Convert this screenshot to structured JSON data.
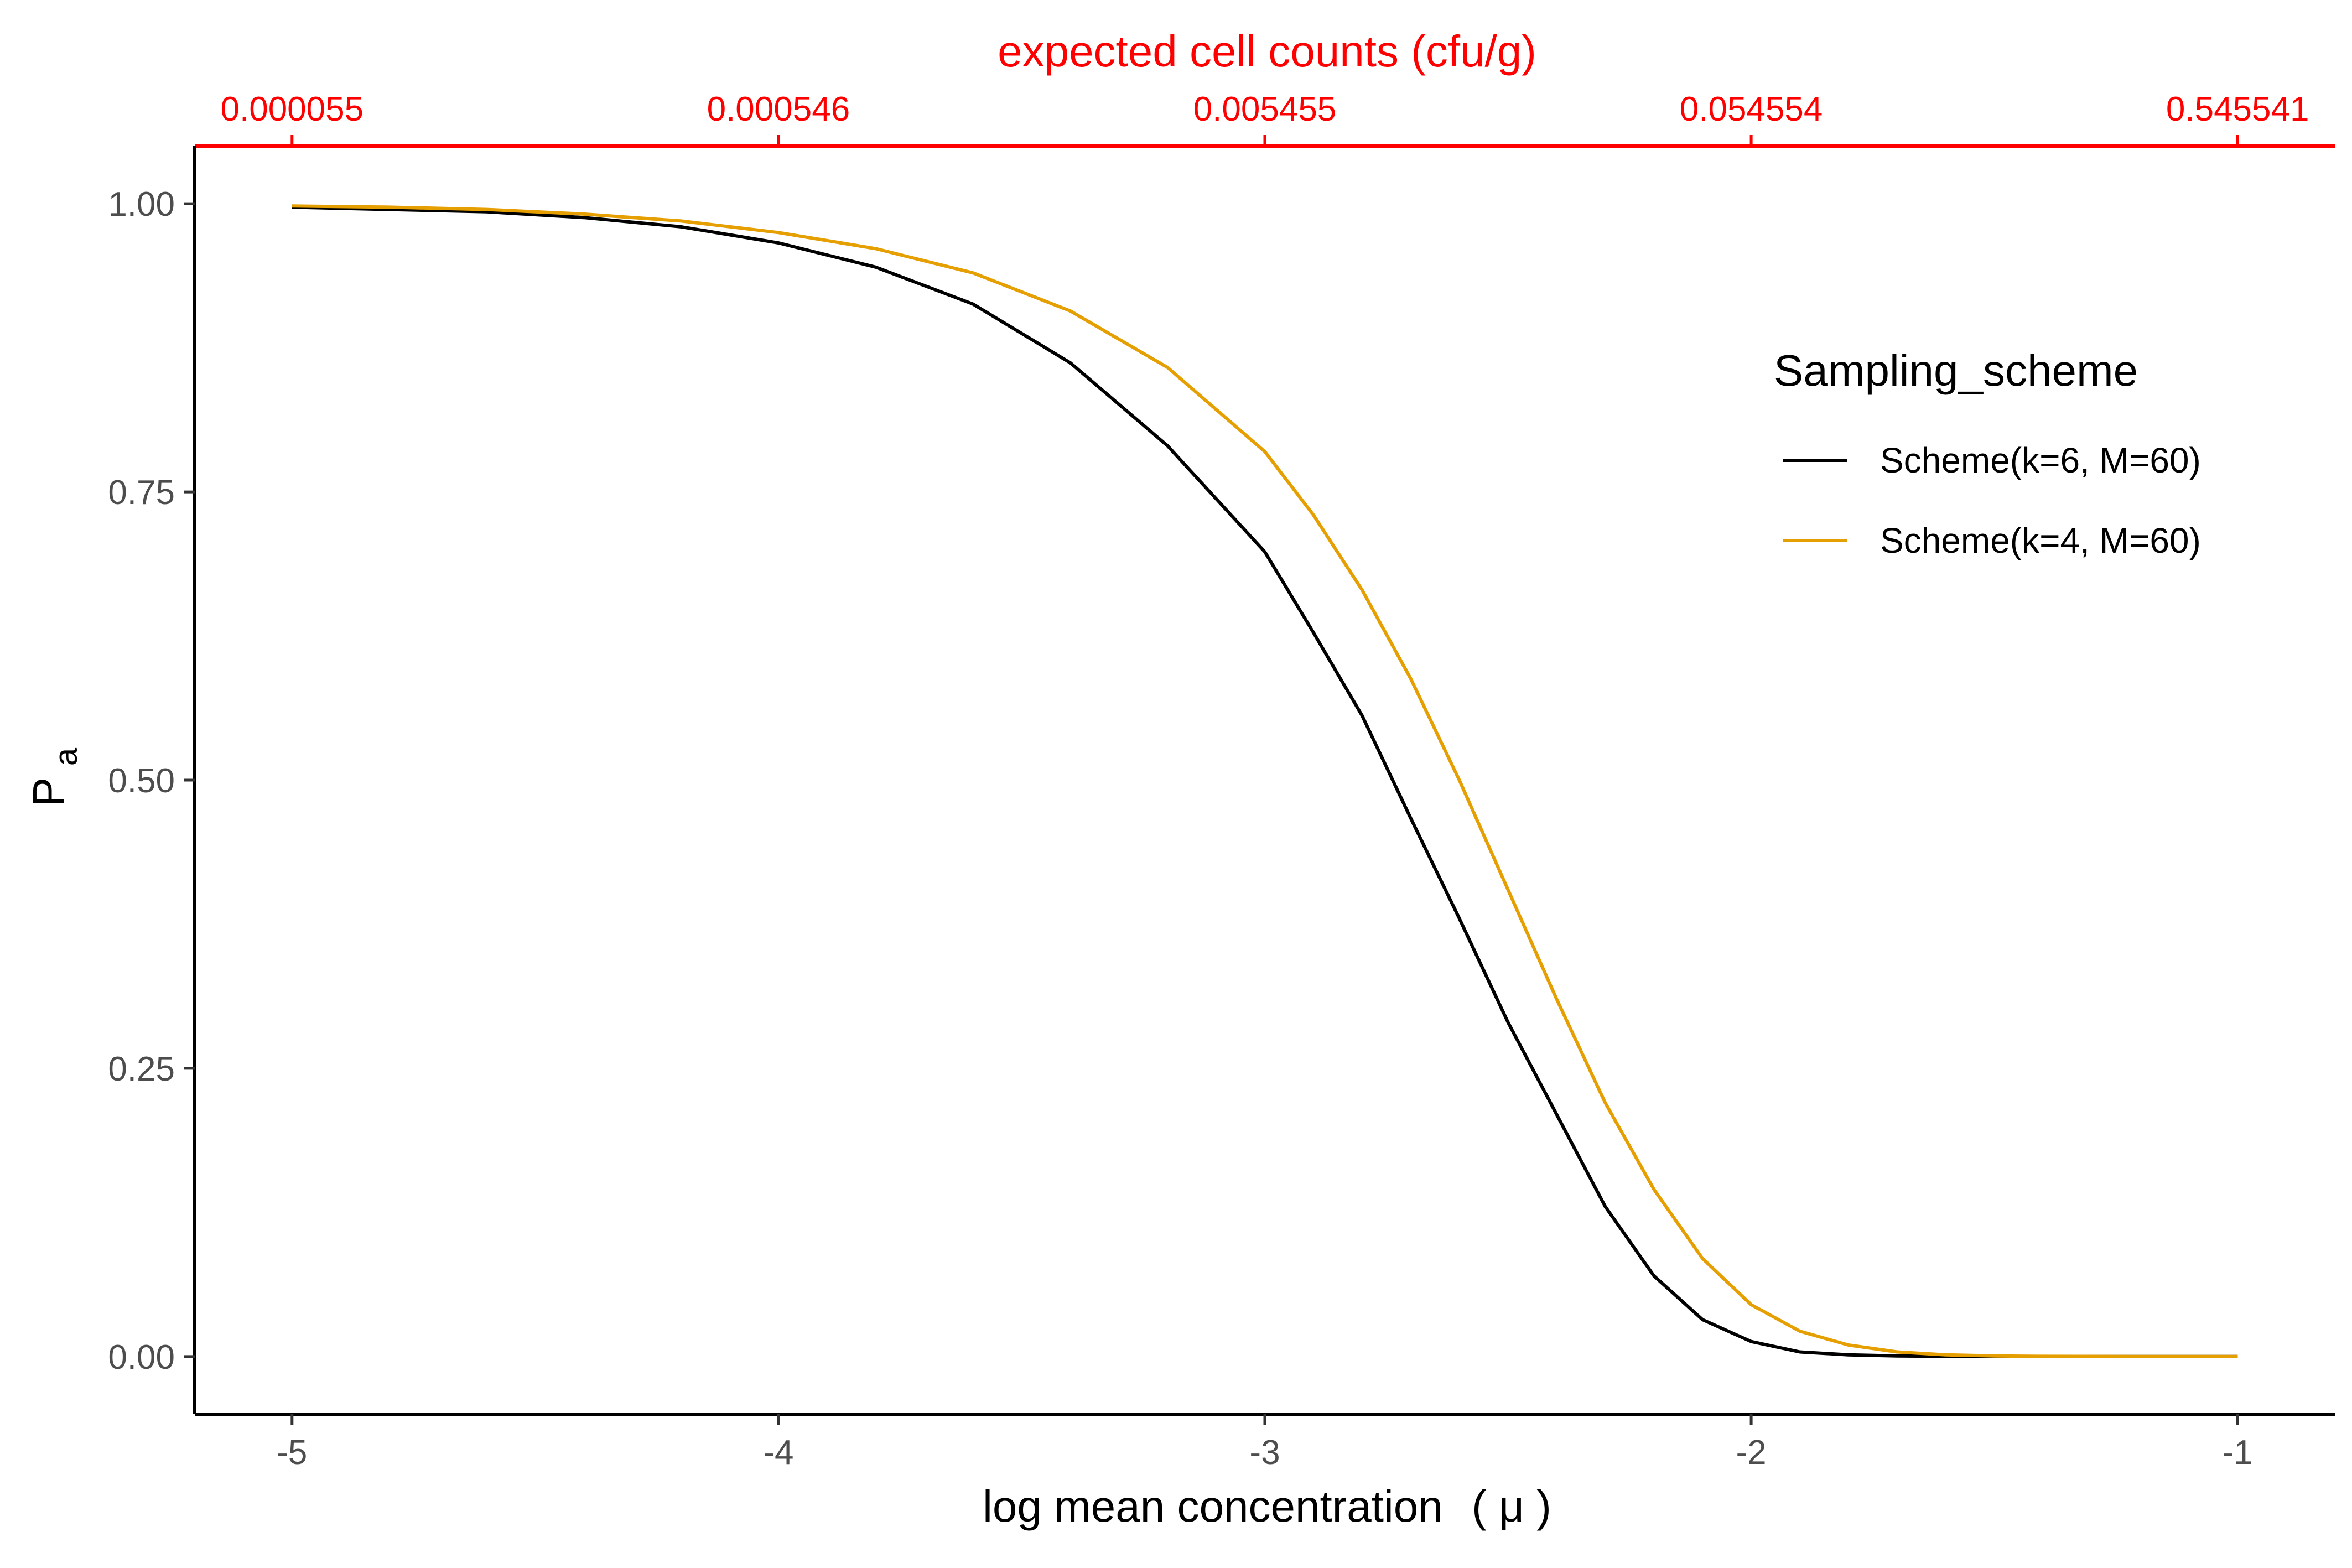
{
  "chart_data": {
    "type": "line",
    "xlabel_main": "log mean concentration",
    "xlabel_symbol": "( μ )",
    "ylabel_main": "P",
    "ylabel_sub": "a",
    "top_axis_title": "expected cell counts (cfu/g)",
    "xlim": [
      -5.2,
      -0.8
    ],
    "ylim": [
      -0.05,
      1.05
    ],
    "x_ticks": [
      -5,
      -4,
      -3,
      -2,
      -1
    ],
    "x_tick_labels": [
      "-5",
      "-4",
      "-3",
      "-2",
      "-1"
    ],
    "y_ticks": [
      0,
      0.25,
      0.5,
      0.75,
      1.0
    ],
    "y_tick_labels": [
      "0.00",
      "0.25",
      "0.50",
      "0.75",
      "1.00"
    ],
    "top_ticks": [
      -5,
      -4,
      -3,
      -2,
      -1
    ],
    "top_tick_labels": [
      "0.000055",
      "0.000546",
      "0.005455",
      "0.054554",
      "0.545541"
    ],
    "grid": false,
    "legend": {
      "title": "Sampling_scheme",
      "placement": "right-inside"
    },
    "series": [
      {
        "name": "Scheme(k=6, M=60)",
        "color": "#000000",
        "x": [
          -5.0,
          -4.8,
          -4.6,
          -4.4,
          -4.2,
          -4.0,
          -3.8,
          -3.6,
          -3.4,
          -3.2,
          -3.0,
          -2.9,
          -2.8,
          -2.7,
          -2.6,
          -2.5,
          -2.4,
          -2.3,
          -2.2,
          -2.1,
          -2.0,
          -1.9,
          -1.8,
          -1.7,
          -1.6,
          -1.5,
          -1.4,
          -1.2,
          -1.0
        ],
        "y": [
          0.997,
          0.995,
          0.993,
          0.988,
          0.98,
          0.966,
          0.945,
          0.913,
          0.862,
          0.79,
          0.698,
          0.628,
          0.556,
          0.467,
          0.38,
          0.29,
          0.21,
          0.13,
          0.07,
          0.032,
          0.013,
          0.004,
          0.0015,
          0.0005,
          0.0002,
          0.0001,
          0.0,
          0.0,
          0.0
        ]
      },
      {
        "name": "Scheme(k=4, M=60)",
        "color": "#E69F00",
        "x": [
          -5.0,
          -4.8,
          -4.6,
          -4.4,
          -4.2,
          -4.0,
          -3.8,
          -3.6,
          -3.4,
          -3.2,
          -3.0,
          -2.9,
          -2.8,
          -2.7,
          -2.6,
          -2.5,
          -2.4,
          -2.3,
          -2.2,
          -2.1,
          -2.0,
          -1.9,
          -1.8,
          -1.7,
          -1.6,
          -1.5,
          -1.4,
          -1.2,
          -1.0
        ],
        "y": [
          0.998,
          0.997,
          0.995,
          0.991,
          0.985,
          0.975,
          0.961,
          0.94,
          0.907,
          0.858,
          0.785,
          0.73,
          0.665,
          0.588,
          0.5,
          0.405,
          0.31,
          0.22,
          0.145,
          0.085,
          0.045,
          0.022,
          0.01,
          0.004,
          0.0015,
          0.0005,
          0.0002,
          0.0,
          0.0
        ]
      }
    ]
  }
}
